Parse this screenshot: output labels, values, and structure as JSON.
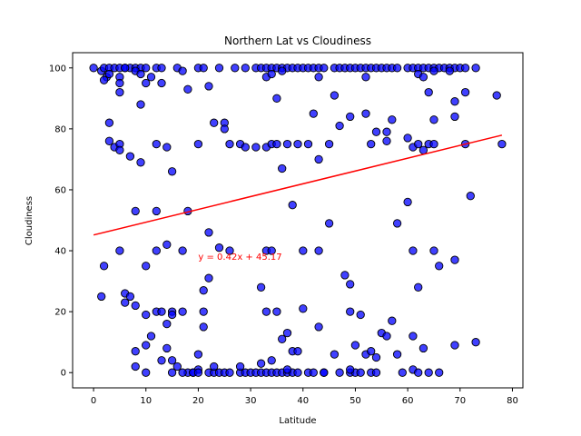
{
  "chart_data": {
    "type": "scatter",
    "title": "Northern Lat vs Cloudiness",
    "xlabel": "Latitude",
    "ylabel": "Cloudiness",
    "xlim": [
      -4,
      82
    ],
    "ylim": [
      -5,
      105
    ],
    "xticks": [
      0,
      10,
      20,
      30,
      40,
      50,
      60,
      70,
      80
    ],
    "yticks": [
      0,
      20,
      40,
      60,
      80,
      100
    ],
    "grid": false,
    "marker_color": "#0000ff",
    "marker_edge_color": "#000000",
    "regression": {
      "slope": 0.42,
      "intercept": 45.17,
      "x_range": [
        0,
        78
      ],
      "color": "#ff0000",
      "equation": "y = 0.42x + 45.17",
      "label_x": 20,
      "label_y": 37
    },
    "points": [
      [
        0,
        100
      ],
      [
        1.5,
        99
      ],
      [
        2,
        100
      ],
      [
        2.5,
        97
      ],
      [
        3,
        100
      ],
      [
        4,
        100
      ],
      [
        2,
        96
      ],
      [
        3,
        98
      ],
      [
        5,
        100
      ],
      [
        6,
        100
      ],
      [
        7,
        100
      ],
      [
        8,
        100
      ],
      [
        9,
        100
      ],
      [
        8,
        99
      ],
      [
        10,
        100
      ],
      [
        12,
        100
      ],
      [
        13,
        100
      ],
      [
        11,
        97
      ],
      [
        9,
        98
      ],
      [
        5,
        97
      ],
      [
        5,
        95
      ],
      [
        5,
        92
      ],
      [
        6,
        100
      ],
      [
        10,
        95
      ],
      [
        13,
        95
      ],
      [
        16,
        100
      ],
      [
        17,
        99
      ],
      [
        20,
        100
      ],
      [
        21,
        100
      ],
      [
        24,
        100
      ],
      [
        27,
        100
      ],
      [
        29,
        100
      ],
      [
        31,
        100
      ],
      [
        32,
        100
      ],
      [
        33,
        100
      ],
      [
        34,
        100
      ],
      [
        35,
        100
      ],
      [
        36,
        100
      ],
      [
        37,
        100
      ],
      [
        38,
        100
      ],
      [
        39,
        100
      ],
      [
        40,
        100
      ],
      [
        41,
        100
      ],
      [
        42,
        100
      ],
      [
        43,
        100
      ],
      [
        44,
        100
      ],
      [
        46,
        100
      ],
      [
        47,
        100
      ],
      [
        48,
        100
      ],
      [
        49,
        100
      ],
      [
        50,
        100
      ],
      [
        51,
        100
      ],
      [
        52,
        100
      ],
      [
        53,
        100
      ],
      [
        54,
        100
      ],
      [
        55,
        100
      ],
      [
        56,
        100
      ],
      [
        57,
        100
      ],
      [
        58,
        100
      ],
      [
        60,
        100
      ],
      [
        61,
        100
      ],
      [
        62,
        100
      ],
      [
        63,
        100
      ],
      [
        64,
        100
      ],
      [
        65,
        100
      ],
      [
        66,
        100
      ],
      [
        67,
        100
      ],
      [
        68,
        100
      ],
      [
        69,
        100
      ],
      [
        70,
        100
      ],
      [
        71,
        100
      ],
      [
        73,
        100
      ],
      [
        33,
        97
      ],
      [
        34,
        98
      ],
      [
        36,
        99
      ],
      [
        43,
        97
      ],
      [
        52,
        97
      ],
      [
        62,
        98
      ],
      [
        63,
        97
      ],
      [
        65,
        99
      ],
      [
        68,
        99
      ],
      [
        18,
        93
      ],
      [
        22,
        94
      ],
      [
        35,
        90
      ],
      [
        46,
        91
      ],
      [
        64,
        92
      ],
      [
        69,
        89
      ],
      [
        71,
        92
      ],
      [
        77,
        91
      ],
      [
        9,
        88
      ],
      [
        3,
        82
      ],
      [
        3,
        76
      ],
      [
        4,
        74
      ],
      [
        5,
        75
      ],
      [
        5,
        73
      ],
      [
        7,
        71
      ],
      [
        9,
        69
      ],
      [
        12,
        75
      ],
      [
        14,
        74
      ],
      [
        15,
        66
      ],
      [
        20,
        75
      ],
      [
        23,
        82
      ],
      [
        25,
        82
      ],
      [
        25,
        80
      ],
      [
        26,
        75
      ],
      [
        28,
        75
      ],
      [
        29,
        74
      ],
      [
        31,
        74
      ],
      [
        33,
        74
      ],
      [
        34,
        75
      ],
      [
        35,
        75
      ],
      [
        36,
        67
      ],
      [
        37,
        75
      ],
      [
        39,
        75
      ],
      [
        41,
        75
      ],
      [
        42,
        85
      ],
      [
        43,
        70
      ],
      [
        45,
        75
      ],
      [
        47,
        81
      ],
      [
        49,
        84
      ],
      [
        52,
        85
      ],
      [
        53,
        75
      ],
      [
        54,
        79
      ],
      [
        56,
        76
      ],
      [
        56,
        79
      ],
      [
        57,
        83
      ],
      [
        60,
        77
      ],
      [
        61,
        74
      ],
      [
        62,
        75
      ],
      [
        63,
        73
      ],
      [
        64,
        75
      ],
      [
        65,
        83
      ],
      [
        65,
        75
      ],
      [
        69,
        84
      ],
      [
        71,
        75
      ],
      [
        78,
        75
      ],
      [
        8,
        53
      ],
      [
        12,
        53
      ],
      [
        18,
        53
      ],
      [
        38,
        55
      ],
      [
        72,
        58
      ],
      [
        58,
        49
      ],
      [
        60,
        56
      ],
      [
        22,
        46
      ],
      [
        45,
        49
      ],
      [
        5,
        40
      ],
      [
        10,
        35
      ],
      [
        12,
        40
      ],
      [
        14,
        42
      ],
      [
        17,
        40
      ],
      [
        24,
        41
      ],
      [
        26,
        40
      ],
      [
        33,
        40
      ],
      [
        34,
        40
      ],
      [
        40,
        40
      ],
      [
        43,
        40
      ],
      [
        61,
        40
      ],
      [
        65,
        40
      ],
      [
        66,
        35
      ],
      [
        2,
        35
      ],
      [
        69,
        37
      ],
      [
        1.5,
        25
      ],
      [
        6,
        26
      ],
      [
        6,
        23
      ],
      [
        7,
        25
      ],
      [
        8,
        22
      ],
      [
        10,
        19
      ],
      [
        12,
        20
      ],
      [
        13,
        20
      ],
      [
        14,
        16
      ],
      [
        15,
        20
      ],
      [
        15,
        19
      ],
      [
        17,
        20
      ],
      [
        21,
        27
      ],
      [
        22,
        31
      ],
      [
        21,
        20
      ],
      [
        21,
        15
      ],
      [
        32,
        28
      ],
      [
        33,
        20
      ],
      [
        35,
        20
      ],
      [
        36,
        11
      ],
      [
        37,
        13
      ],
      [
        38,
        7
      ],
      [
        39,
        7
      ],
      [
        40,
        21
      ],
      [
        43,
        15
      ],
      [
        46,
        6
      ],
      [
        48,
        32
      ],
      [
        49,
        29
      ],
      [
        49,
        20
      ],
      [
        50,
        9
      ],
      [
        51,
        19
      ],
      [
        52,
        6
      ],
      [
        53,
        7
      ],
      [
        54,
        5
      ],
      [
        55,
        13
      ],
      [
        56,
        12
      ],
      [
        57,
        17
      ],
      [
        58,
        6
      ],
      [
        61,
        12
      ],
      [
        62,
        28
      ],
      [
        63,
        8
      ],
      [
        69,
        9
      ],
      [
        73,
        10
      ],
      [
        61,
        1
      ],
      [
        8,
        7
      ],
      [
        8,
        2
      ],
      [
        10,
        9
      ],
      [
        11,
        12
      ],
      [
        13,
        4
      ],
      [
        14,
        8
      ],
      [
        15,
        4
      ],
      [
        16,
        2
      ],
      [
        18,
        0
      ],
      [
        19,
        0
      ],
      [
        20,
        6
      ],
      [
        20,
        1
      ],
      [
        10,
        0
      ],
      [
        15,
        0
      ],
      [
        17,
        0
      ],
      [
        19,
        0
      ],
      [
        20,
        0
      ],
      [
        22,
        0
      ],
      [
        23,
        0
      ],
      [
        24,
        0
      ],
      [
        25,
        0
      ],
      [
        26,
        0
      ],
      [
        28,
        0
      ],
      [
        29,
        0
      ],
      [
        30,
        0
      ],
      [
        31,
        0
      ],
      [
        32,
        0
      ],
      [
        33,
        0
      ],
      [
        34,
        0
      ],
      [
        35,
        0
      ],
      [
        36,
        0
      ],
      [
        37,
        0
      ],
      [
        38,
        0
      ],
      [
        39,
        0
      ],
      [
        41,
        0
      ],
      [
        42,
        0
      ],
      [
        44,
        0
      ],
      [
        47,
        0
      ],
      [
        49,
        0
      ],
      [
        50,
        0
      ],
      [
        51,
        0
      ],
      [
        53,
        0
      ],
      [
        54,
        0
      ],
      [
        59,
        0
      ],
      [
        62,
        0
      ],
      [
        64,
        0
      ],
      [
        66,
        0
      ],
      [
        23,
        2
      ],
      [
        28,
        2
      ],
      [
        32,
        3
      ],
      [
        34,
        4
      ],
      [
        37,
        1
      ],
      [
        44,
        0
      ],
      [
        49,
        1
      ]
    ]
  }
}
